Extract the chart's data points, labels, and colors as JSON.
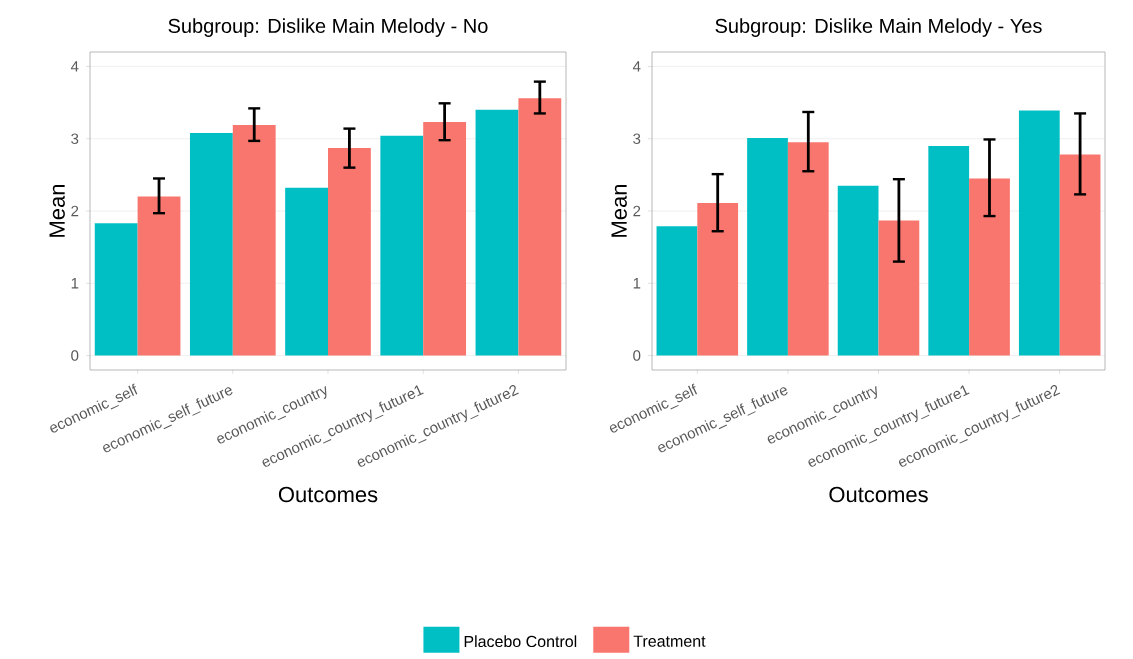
{
  "chart_data": [
    {
      "type": "bar",
      "title": "Subgroup: Dislike Main Melody - No",
      "xlabel": "Outcomes",
      "ylabel": "Mean",
      "categories": [
        "economic_self",
        "economic_self_future",
        "economic_country",
        "economic_country_future1",
        "economic_country_future2"
      ],
      "series": [
        {
          "name": "Placebo Control",
          "color": "#00bfc4",
          "values": [
            1.83,
            3.08,
            2.32,
            3.04,
            3.4
          ]
        },
        {
          "name": "Treatment",
          "color": "#f8766d",
          "values": [
            2.2,
            3.19,
            2.87,
            3.23,
            3.56
          ],
          "errors": [
            [
              1.97,
              2.45
            ],
            [
              2.97,
              3.42
            ],
            [
              2.6,
              3.14
            ],
            [
              2.98,
              3.49
            ],
            [
              3.35,
              3.79
            ]
          ]
        }
      ],
      "ylim": [
        -0.2,
        4.2
      ],
      "yticks": [
        0,
        1,
        2,
        3,
        4
      ],
      "grid": "y",
      "legend": "bottom"
    },
    {
      "type": "bar",
      "title": "Subgroup: Dislike Main Melody - Yes",
      "xlabel": "Outcomes",
      "ylabel": "Mean",
      "categories": [
        "economic_self",
        "economic_self_future",
        "economic_country",
        "economic_country_future1",
        "economic_country_future2"
      ],
      "series": [
        {
          "color": "#00bfc4",
          "values": [
            1.79,
            3.01,
            2.35,
            2.9,
            3.39
          ]
        },
        {
          "color": "#f8766d",
          "values": [
            2.11,
            2.95,
            1.87,
            2.45,
            2.78
          ],
          "errors": [
            [
              1.72,
              2.51
            ],
            [
              2.55,
              3.37
            ],
            [
              1.3,
              2.44
            ],
            [
              1.93,
              2.99
            ],
            [
              2.23,
              3.35
            ]
          ]
        }
      ],
      "ylim": [
        -0.2,
        4.2
      ],
      "yticks": [
        0,
        1,
        2,
        3,
        4
      ],
      "grid": "y"
    }
  ]
}
